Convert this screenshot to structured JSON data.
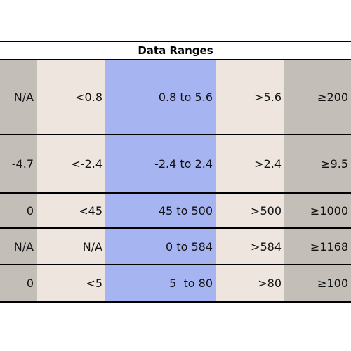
{
  "table": {
    "title": "Data Ranges",
    "rows": [
      [
        "N/A",
        "<0.8",
        "0.8 to 5.6",
        ">5.6",
        "≥200"
      ],
      [
        "-4.7",
        "<-2.4",
        "-2.4 to 2.4",
        ">2.4",
        "≥9.5"
      ],
      [
        "0",
        "<45",
        "45 to 500",
        ">500",
        "≥1000"
      ],
      [
        "N/A",
        "N/A",
        "0 to 584",
        ">584",
        "≥1168"
      ],
      [
        "0",
        "<5",
        "5  to 80",
        ">80",
        "≥100"
      ]
    ]
  }
}
